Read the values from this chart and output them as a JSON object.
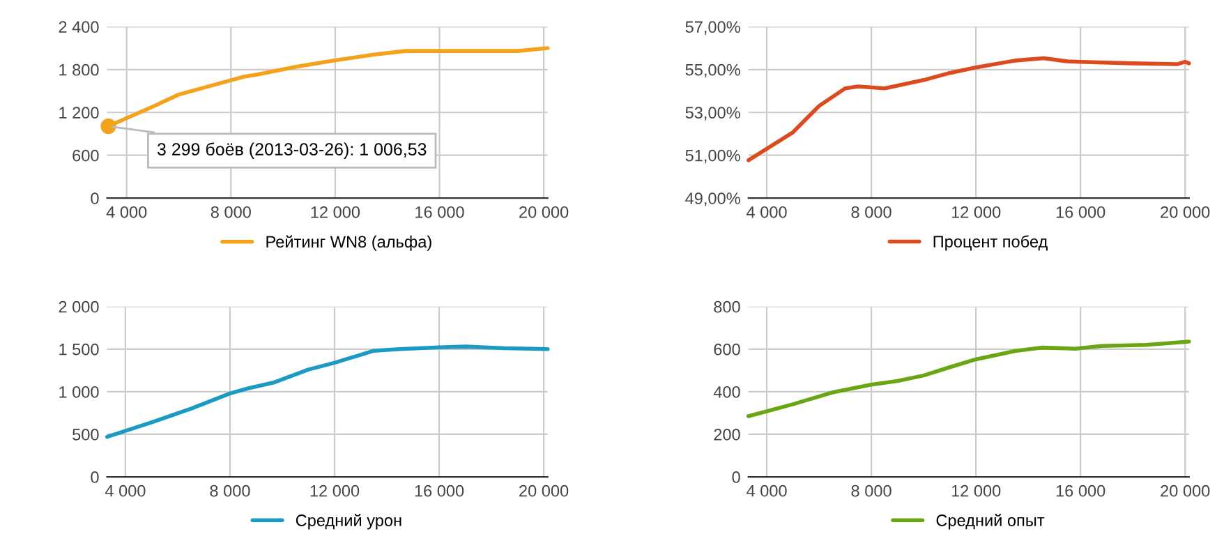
{
  "chart_data": [
    {
      "type": "line",
      "x": [
        3299,
        5000,
        6000,
        8000,
        8500,
        9000,
        10500,
        12000,
        13500,
        14700,
        16000,
        19000,
        20150
      ],
      "series": [
        {
          "name": "Рейтинг WN8 (альфа)",
          "color": "#f4a21c",
          "values": [
            1006.53,
            1280,
            1450,
            1650,
            1700,
            1730,
            1840,
            1930,
            2010,
            2060,
            2060,
            2060,
            2100
          ]
        }
      ],
      "xlim": [
        3250,
        20150
      ],
      "ylim": [
        0,
        2400
      ],
      "xticks": [
        {
          "value": 4000,
          "label": "4 000"
        },
        {
          "value": 8000,
          "label": "8 000"
        },
        {
          "value": 12000,
          "label": "12 000"
        },
        {
          "value": 16000,
          "label": "16 000"
        },
        {
          "value": 20000,
          "label": "20 000"
        }
      ],
      "yticks": [
        0,
        600,
        {
          "value": 1200,
          "label": "1 200"
        },
        {
          "value": 1800,
          "label": "1 800"
        },
        {
          "value": 2400,
          "label": "2 400"
        }
      ],
      "annotations": [
        {
          "text": "3 299 боёв (2013-03-26): 1 006,53",
          "x": 3299,
          "y": 1006.53
        }
      ],
      "grid": true,
      "legend": "bottom"
    },
    {
      "type": "line",
      "x": [
        3300,
        5000,
        6000,
        7000,
        7500,
        8500,
        10000,
        11000,
        12000,
        13500,
        14600,
        15500,
        16000,
        18000,
        19700,
        20000,
        20150
      ],
      "series": [
        {
          "name": "Процент побед",
          "color": "#dc4a1f",
          "values": [
            50.77,
            52.07,
            53.3,
            54.12,
            54.21,
            54.12,
            54.51,
            54.84,
            55.1,
            55.42,
            55.53,
            55.38,
            55.36,
            55.29,
            55.25,
            55.36,
            55.29
          ]
        }
      ],
      "xlim": [
        3300,
        20150
      ],
      "ylim": [
        49,
        57
      ],
      "xticks": [
        {
          "value": 4000,
          "label": "4 000"
        },
        {
          "value": 8000,
          "label": "8 000"
        },
        {
          "value": 12000,
          "label": "12 000"
        },
        {
          "value": 16000,
          "label": "16 000"
        },
        {
          "value": 20000,
          "label": "20 000"
        }
      ],
      "yticks": [
        {
          "value": 49,
          "label": "49,00%"
        },
        {
          "value": 51,
          "label": "51,00%"
        },
        {
          "value": 53,
          "label": "53,00%"
        },
        {
          "value": 55,
          "label": "55,00%"
        },
        {
          "value": 57,
          "label": "57,00%"
        }
      ],
      "grid": true,
      "legend": "bottom"
    },
    {
      "type": "line",
      "x": [
        3300,
        5000,
        6500,
        8000,
        8700,
        9700,
        11000,
        12000,
        13500,
        14500,
        16000,
        17000,
        18500,
        20150
      ],
      "series": [
        {
          "name": "Средний урон",
          "color": "#1b9bc4",
          "values": [
            470,
            640,
            800,
            980,
            1040,
            1110,
            1260,
            1340,
            1480,
            1500,
            1520,
            1530,
            1510,
            1500
          ]
        }
      ],
      "xlim": [
        3300,
        20150
      ],
      "ylim": [
        0,
        2000
      ],
      "xticks": [
        {
          "value": 4000,
          "label": "4 000"
        },
        {
          "value": 8000,
          "label": "8 000"
        },
        {
          "value": 12000,
          "label": "12 000"
        },
        {
          "value": 16000,
          "label": "16 000"
        },
        {
          "value": 20000,
          "label": "20 000"
        }
      ],
      "yticks": [
        0,
        500,
        {
          "value": 1000,
          "label": "1 000"
        },
        {
          "value": 1500,
          "label": "1 500"
        },
        {
          "value": 2000,
          "label": "2 000"
        }
      ],
      "grid": true,
      "legend": "bottom"
    },
    {
      "type": "line",
      "x": [
        3300,
        5000,
        6500,
        8000,
        9000,
        10000,
        11000,
        12000,
        13500,
        14500,
        15800,
        16800,
        18500,
        20150
      ],
      "series": [
        {
          "name": "Средний опыт",
          "color": "#6aa514",
          "values": [
            285,
            341,
            396,
            433,
            450,
            476,
            515,
            552,
            591,
            607,
            602,
            615,
            620,
            635
          ]
        }
      ],
      "xlim": [
        3300,
        20150
      ],
      "ylim": [
        0,
        800
      ],
      "xticks": [
        {
          "value": 4000,
          "label": "4 000"
        },
        {
          "value": 8000,
          "label": "8 000"
        },
        {
          "value": 12000,
          "label": "12 000"
        },
        {
          "value": 16000,
          "label": "16 000"
        },
        {
          "value": 20000,
          "label": "20 000"
        }
      ],
      "yticks": [
        0,
        200,
        400,
        600,
        800
      ],
      "grid": true,
      "legend": "bottom"
    }
  ]
}
